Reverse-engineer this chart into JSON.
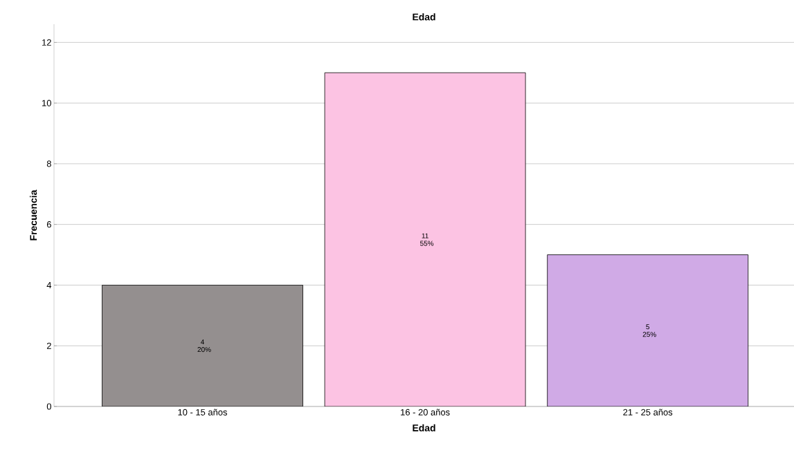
{
  "chart_data": {
    "type": "bar",
    "title": "Edad",
    "xlabel": "Edad",
    "ylabel": "Frecuencia",
    "categories": [
      "10 - 15 años",
      "16 - 20 años",
      "21 - 25 años"
    ],
    "values": [
      4,
      11,
      5
    ],
    "colors": [
      "#948f8f",
      "#fcc3e3",
      "#d0aae6"
    ],
    "value_labels": [
      "4 20%",
      "11 55%",
      "5 25%"
    ],
    "ylim": [
      0,
      12.6
    ],
    "yticks": [
      0,
      2,
      4,
      6,
      8,
      10,
      12
    ],
    "grid": "y"
  }
}
